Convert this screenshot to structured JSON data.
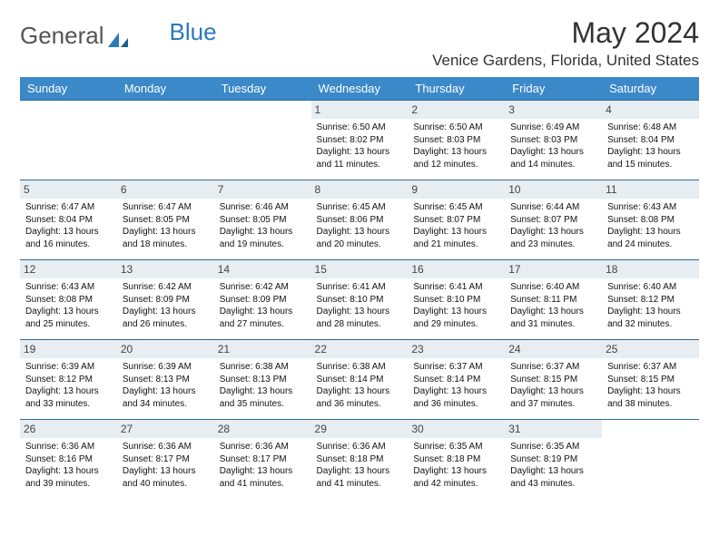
{
  "brand": {
    "part1": "General",
    "part2": "Blue"
  },
  "title": "May 2024",
  "location": "Venice Gardens, Florida, United States",
  "colors": {
    "header_bg": "#3b89c9",
    "header_text": "#ffffff",
    "daynum_bg": "#e8edf1",
    "rule": "#2f6a9a",
    "logo_gray": "#555555",
    "logo_blue": "#2a7ab8"
  },
  "dayHeaders": [
    "Sunday",
    "Monday",
    "Tuesday",
    "Wednesday",
    "Thursday",
    "Friday",
    "Saturday"
  ],
  "weeks": [
    [
      null,
      null,
      null,
      {
        "n": "1",
        "sr": "6:50 AM",
        "ss": "8:02 PM",
        "dl": "13 hours and 11 minutes."
      },
      {
        "n": "2",
        "sr": "6:50 AM",
        "ss": "8:03 PM",
        "dl": "13 hours and 12 minutes."
      },
      {
        "n": "3",
        "sr": "6:49 AM",
        "ss": "8:03 PM",
        "dl": "13 hours and 14 minutes."
      },
      {
        "n": "4",
        "sr": "6:48 AM",
        "ss": "8:04 PM",
        "dl": "13 hours and 15 minutes."
      }
    ],
    [
      {
        "n": "5",
        "sr": "6:47 AM",
        "ss": "8:04 PM",
        "dl": "13 hours and 16 minutes."
      },
      {
        "n": "6",
        "sr": "6:47 AM",
        "ss": "8:05 PM",
        "dl": "13 hours and 18 minutes."
      },
      {
        "n": "7",
        "sr": "6:46 AM",
        "ss": "8:05 PM",
        "dl": "13 hours and 19 minutes."
      },
      {
        "n": "8",
        "sr": "6:45 AM",
        "ss": "8:06 PM",
        "dl": "13 hours and 20 minutes."
      },
      {
        "n": "9",
        "sr": "6:45 AM",
        "ss": "8:07 PM",
        "dl": "13 hours and 21 minutes."
      },
      {
        "n": "10",
        "sr": "6:44 AM",
        "ss": "8:07 PM",
        "dl": "13 hours and 23 minutes."
      },
      {
        "n": "11",
        "sr": "6:43 AM",
        "ss": "8:08 PM",
        "dl": "13 hours and 24 minutes."
      }
    ],
    [
      {
        "n": "12",
        "sr": "6:43 AM",
        "ss": "8:08 PM",
        "dl": "13 hours and 25 minutes."
      },
      {
        "n": "13",
        "sr": "6:42 AM",
        "ss": "8:09 PM",
        "dl": "13 hours and 26 minutes."
      },
      {
        "n": "14",
        "sr": "6:42 AM",
        "ss": "8:09 PM",
        "dl": "13 hours and 27 minutes."
      },
      {
        "n": "15",
        "sr": "6:41 AM",
        "ss": "8:10 PM",
        "dl": "13 hours and 28 minutes."
      },
      {
        "n": "16",
        "sr": "6:41 AM",
        "ss": "8:10 PM",
        "dl": "13 hours and 29 minutes."
      },
      {
        "n": "17",
        "sr": "6:40 AM",
        "ss": "8:11 PM",
        "dl": "13 hours and 31 minutes."
      },
      {
        "n": "18",
        "sr": "6:40 AM",
        "ss": "8:12 PM",
        "dl": "13 hours and 32 minutes."
      }
    ],
    [
      {
        "n": "19",
        "sr": "6:39 AM",
        "ss": "8:12 PM",
        "dl": "13 hours and 33 minutes."
      },
      {
        "n": "20",
        "sr": "6:39 AM",
        "ss": "8:13 PM",
        "dl": "13 hours and 34 minutes."
      },
      {
        "n": "21",
        "sr": "6:38 AM",
        "ss": "8:13 PM",
        "dl": "13 hours and 35 minutes."
      },
      {
        "n": "22",
        "sr": "6:38 AM",
        "ss": "8:14 PM",
        "dl": "13 hours and 36 minutes."
      },
      {
        "n": "23",
        "sr": "6:37 AM",
        "ss": "8:14 PM",
        "dl": "13 hours and 36 minutes."
      },
      {
        "n": "24",
        "sr": "6:37 AM",
        "ss": "8:15 PM",
        "dl": "13 hours and 37 minutes."
      },
      {
        "n": "25",
        "sr": "6:37 AM",
        "ss": "8:15 PM",
        "dl": "13 hours and 38 minutes."
      }
    ],
    [
      {
        "n": "26",
        "sr": "6:36 AM",
        "ss": "8:16 PM",
        "dl": "13 hours and 39 minutes."
      },
      {
        "n": "27",
        "sr": "6:36 AM",
        "ss": "8:17 PM",
        "dl": "13 hours and 40 minutes."
      },
      {
        "n": "28",
        "sr": "6:36 AM",
        "ss": "8:17 PM",
        "dl": "13 hours and 41 minutes."
      },
      {
        "n": "29",
        "sr": "6:36 AM",
        "ss": "8:18 PM",
        "dl": "13 hours and 41 minutes."
      },
      {
        "n": "30",
        "sr": "6:35 AM",
        "ss": "8:18 PM",
        "dl": "13 hours and 42 minutes."
      },
      {
        "n": "31",
        "sr": "6:35 AM",
        "ss": "8:19 PM",
        "dl": "13 hours and 43 minutes."
      },
      null
    ]
  ],
  "labels": {
    "sunrise": "Sunrise:",
    "sunset": "Sunset:",
    "daylight": "Daylight:"
  }
}
